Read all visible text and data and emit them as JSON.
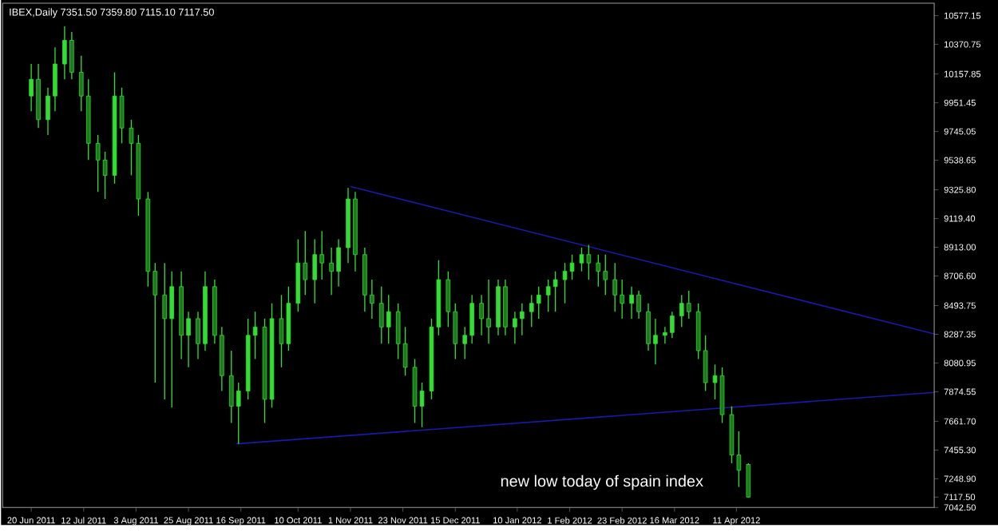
{
  "chart_data": {
    "type": "candlestick",
    "title": "IBEX,Daily  7351.50 7359.80 7115.10 7117.50",
    "annotations": [
      "new low today of spain index"
    ],
    "color": "#33dd33",
    "x": [
      "2011-06-20",
      "2011-06-23",
      "2011-06-27",
      "2011-06-30",
      "2011-07-04",
      "2011-07-07",
      "2011-07-11",
      "2011-07-14",
      "2011-07-18",
      "2011-07-21",
      "2011-07-25",
      "2011-07-28",
      "2011-08-01",
      "2011-08-04",
      "2011-08-08",
      "2011-08-11",
      "2011-08-15",
      "2011-08-18",
      "2011-08-22",
      "2011-08-25",
      "2011-08-29",
      "2011-09-01",
      "2011-09-05",
      "2011-09-08",
      "2011-09-12",
      "2011-09-15",
      "2011-09-19",
      "2011-09-22",
      "2011-09-26",
      "2011-09-29",
      "2011-10-03",
      "2011-10-06",
      "2011-10-10",
      "2011-10-13",
      "2011-10-17",
      "2011-10-20",
      "2011-10-24",
      "2011-10-27",
      "2011-10-31",
      "2011-11-03",
      "2011-11-07",
      "2011-11-10",
      "2011-11-14",
      "2011-11-17",
      "2011-11-21",
      "2011-11-24",
      "2011-11-28",
      "2011-12-01",
      "2011-12-05",
      "2011-12-08",
      "2011-12-12",
      "2011-12-15",
      "2011-12-19",
      "2011-12-22",
      "2011-12-26",
      "2011-12-29",
      "2012-01-02",
      "2012-01-05",
      "2012-01-09",
      "2012-01-12",
      "2012-01-16",
      "2012-01-19",
      "2012-01-23",
      "2012-01-26",
      "2012-01-30",
      "2012-02-02",
      "2012-02-06",
      "2012-02-09",
      "2012-02-13",
      "2012-02-16",
      "2012-02-20",
      "2012-02-23",
      "2012-02-27",
      "2012-03-01",
      "2012-03-05",
      "2012-03-08",
      "2012-03-12",
      "2012-03-15",
      "2012-03-19",
      "2012-03-22",
      "2012-03-26",
      "2012-03-29",
      "2012-04-02",
      "2012-04-05",
      "2012-04-09",
      "2012-04-12",
      "2012-04-16"
    ],
    "ohlc": [
      [
        10000,
        10230,
        9890,
        10120
      ],
      [
        10120,
        10230,
        9770,
        9830
      ],
      [
        9830,
        10060,
        9720,
        10000
      ],
      [
        10000,
        10350,
        9890,
        10230
      ],
      [
        10230,
        10500,
        10120,
        10400
      ],
      [
        10400,
        10460,
        10120,
        10170
      ],
      [
        10170,
        10290,
        9890,
        10000
      ],
      [
        10000,
        10120,
        9540,
        9660
      ],
      [
        9660,
        9720,
        9310,
        9540
      ],
      [
        9540,
        9600,
        9260,
        9430
      ],
      [
        9430,
        10170,
        9370,
        10000
      ],
      [
        10000,
        10060,
        9660,
        9770
      ],
      [
        9770,
        9830,
        9430,
        9660
      ],
      [
        9660,
        9720,
        9140,
        9260
      ],
      [
        9260,
        9310,
        8630,
        8740
      ],
      [
        8740,
        8800,
        7940,
        8570
      ],
      [
        8570,
        8800,
        7820,
        8400
      ],
      [
        8400,
        8740,
        7760,
        8630
      ],
      [
        8630,
        8740,
        8110,
        8280
      ],
      [
        8280,
        8450,
        8050,
        8400
      ],
      [
        8400,
        8450,
        8110,
        8220
      ],
      [
        8220,
        8740,
        8170,
        8630
      ],
      [
        8630,
        8680,
        8220,
        8280
      ],
      [
        8280,
        8340,
        7880,
        7990
      ],
      [
        7990,
        8170,
        7650,
        7770
      ],
      [
        7770,
        7940,
        7500,
        7880
      ],
      [
        7880,
        8400,
        7820,
        8280
      ],
      [
        8280,
        8450,
        8110,
        8340
      ],
      [
        8340,
        8400,
        7650,
        7820
      ],
      [
        7820,
        8510,
        7760,
        8400
      ],
      [
        8400,
        8570,
        8050,
        8220
      ],
      [
        8220,
        8630,
        8170,
        8510
      ],
      [
        8510,
        8970,
        8450,
        8800
      ],
      [
        8800,
        9030,
        8570,
        8680
      ],
      [
        8680,
        8970,
        8510,
        8860
      ],
      [
        8860,
        9030,
        8680,
        8800
      ],
      [
        8800,
        8910,
        8570,
        8740
      ],
      [
        8740,
        8970,
        8630,
        8910
      ],
      [
        8910,
        9340,
        8800,
        9260
      ],
      [
        9260,
        9310,
        8740,
        8860
      ],
      [
        8860,
        8910,
        8450,
        8570
      ],
      [
        8570,
        8680,
        8400,
        8510
      ],
      [
        8510,
        8630,
        8220,
        8340
      ],
      [
        8340,
        8570,
        8220,
        8450
      ],
      [
        8450,
        8510,
        8110,
        8220
      ],
      [
        8220,
        8340,
        7990,
        8050
      ],
      [
        8050,
        8110,
        7650,
        7770
      ],
      [
        7770,
        7940,
        7620,
        7880
      ],
      [
        7880,
        8400,
        7820,
        8340
      ],
      [
        8340,
        8820,
        8280,
        8680
      ],
      [
        8680,
        8740,
        8340,
        8450
      ],
      [
        8450,
        8510,
        8110,
        8220
      ],
      [
        8220,
        8340,
        8110,
        8280
      ],
      [
        8280,
        8570,
        8220,
        8510
      ],
      [
        8510,
        8570,
        8280,
        8400
      ],
      [
        8400,
        8680,
        8220,
        8340
      ],
      [
        8340,
        8680,
        8280,
        8630
      ],
      [
        8630,
        8680,
        8280,
        8340
      ],
      [
        8340,
        8450,
        8220,
        8400
      ],
      [
        8400,
        8510,
        8280,
        8450
      ],
      [
        8450,
        8570,
        8340,
        8510
      ],
      [
        8510,
        8630,
        8400,
        8570
      ],
      [
        8570,
        8680,
        8450,
        8630
      ],
      [
        8630,
        8740,
        8450,
        8680
      ],
      [
        8680,
        8800,
        8510,
        8740
      ],
      [
        8740,
        8860,
        8680,
        8800
      ],
      [
        8800,
        8910,
        8740,
        8860
      ],
      [
        8860,
        8930,
        8680,
        8800
      ],
      [
        8800,
        8860,
        8630,
        8740
      ],
      [
        8740,
        8860,
        8570,
        8680
      ],
      [
        8680,
        8800,
        8450,
        8570
      ],
      [
        8570,
        8680,
        8400,
        8510
      ],
      [
        8510,
        8630,
        8400,
        8570
      ],
      [
        8570,
        8600,
        8400,
        8450
      ],
      [
        8450,
        8510,
        8170,
        8220
      ],
      [
        8220,
        8400,
        8070,
        8280
      ],
      [
        8280,
        8340,
        8220,
        8300
      ],
      [
        8300,
        8450,
        8260,
        8420
      ],
      [
        8420,
        8570,
        8340,
        8510
      ],
      [
        8510,
        8600,
        8400,
        8450
      ],
      [
        8450,
        8510,
        8110,
        8170
      ],
      [
        8170,
        8280,
        7880,
        7940
      ],
      [
        7940,
        8070,
        7820,
        7990
      ],
      [
        7990,
        8050,
        7650,
        7710
      ],
      [
        7710,
        7770,
        7360,
        7420
      ],
      [
        7420,
        7590,
        7190,
        7310
      ],
      [
        7351.5,
        7359.8,
        7115.1,
        7117.5
      ]
    ],
    "series": [
      {
        "type": "line",
        "color": "#1a1aa8",
        "x": [
          "2011-11-01",
          "2012-07-03"
        ],
        "values": [
          9350,
          8290
        ]
      },
      {
        "type": "line",
        "color": "#1a1aa8",
        "x": [
          "2011-09-14",
          "2012-07-03"
        ],
        "values": [
          7500,
          7870
        ]
      }
    ],
    "xlim": [
      "2011-06-08",
      "2012-07-03"
    ],
    "xticks": [
      {
        "value": "2011-06-20",
        "label": "20 Jun 2011"
      },
      {
        "value": "2011-07-12",
        "label": "12 Jul 2011"
      },
      {
        "value": "2011-08-03",
        "label": "3 Aug 2011"
      },
      {
        "value": "2011-08-25",
        "label": "25 Aug 2011"
      },
      {
        "value": "2011-09-16",
        "label": "16 Sep 2011"
      },
      {
        "value": "2011-10-10",
        "label": "10 Oct 2011"
      },
      {
        "value": "2011-11-01",
        "label": "1 Nov 2011"
      },
      {
        "value": "2011-11-23",
        "label": "23 Nov 2011"
      },
      {
        "value": "2011-12-15",
        "label": "15 Dec 2011"
      },
      {
        "value": "2012-01-10",
        "label": "10 Jan 2012"
      },
      {
        "value": "2012-02-01",
        "label": "1 Feb 2012"
      },
      {
        "value": "2012-02-23",
        "label": "23 Feb 2012"
      },
      {
        "value": "2012-03-16",
        "label": "16 Mar 2012"
      },
      {
        "value": "2012-04-11",
        "label": "11 Apr 2012"
      }
    ],
    "ylim": [
      7042.5,
      10667
    ],
    "yticks": [
      {
        "value": 10577.15,
        "label": "10577.15"
      },
      {
        "value": 10370.75,
        "label": "10370.75"
      },
      {
        "value": 10157.85,
        "label": "10157.85"
      },
      {
        "value": 9951.45,
        "label": "9951.45"
      },
      {
        "value": 9745.05,
        "label": "9745.05"
      },
      {
        "value": 9538.65,
        "label": "9538.65"
      },
      {
        "value": 9325.8,
        "label": "9325.80"
      },
      {
        "value": 9119.4,
        "label": "9119.40"
      },
      {
        "value": 8913,
        "label": "8913.00"
      },
      {
        "value": 8706.6,
        "label": "8706.60"
      },
      {
        "value": 8493.75,
        "label": "8493.75"
      },
      {
        "value": 8287.35,
        "label": "8287.35"
      },
      {
        "value": 8080.95,
        "label": "8080.95"
      },
      {
        "value": 7874.55,
        "label": "7874.55"
      },
      {
        "value": 7661.7,
        "label": "7661.70"
      },
      {
        "value": 7455.3,
        "label": "7455.30"
      },
      {
        "value": 7248.9,
        "label": "7248.90"
      },
      {
        "value": 7117.5,
        "label": "7117.50"
      },
      {
        "value": 7042.5,
        "label": "7042.50"
      }
    ]
  }
}
